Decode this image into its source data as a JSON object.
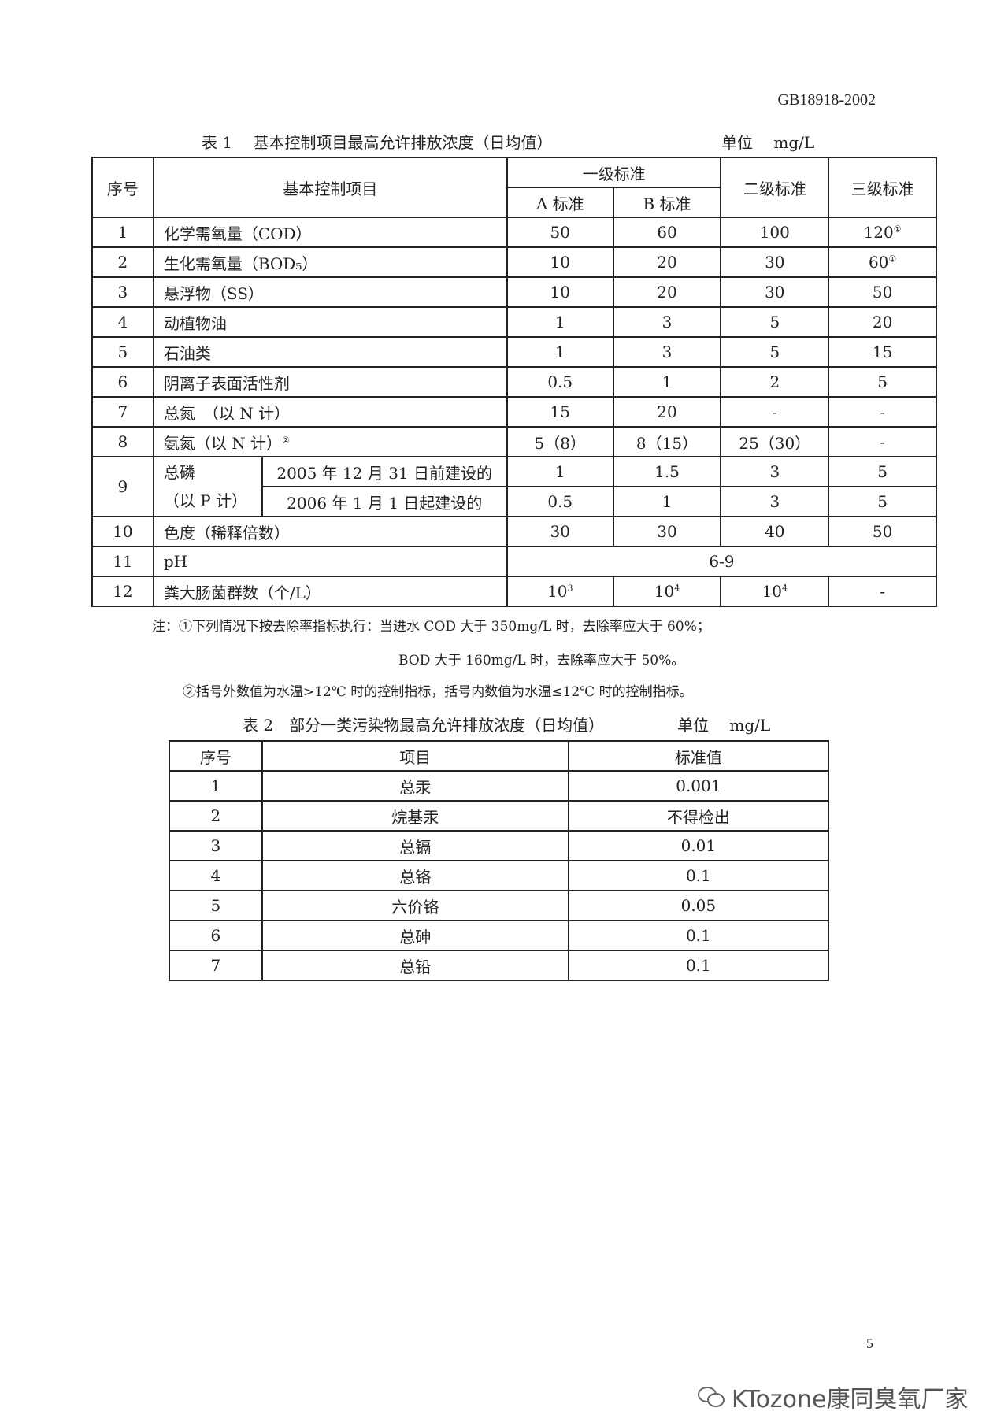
{
  "standard_code": "GB18918-2002",
  "table1": {
    "caption": "表 1　 基本控制项目最高允许排放浓度（日均值）",
    "unit": "单位　 mg/L",
    "headers": {
      "no": "序号",
      "item": "基本控制项目",
      "grade1": "一级标准",
      "a": "A 标准",
      "b": "B 标准",
      "grade2": "二级标准",
      "grade3": "三级标准"
    },
    "rows": [
      {
        "no": "1",
        "item": "化学需氧量（COD）",
        "a": "50",
        "b": "60",
        "g2": "100",
        "g3": "120",
        "g3_note": "①"
      },
      {
        "no": "2",
        "item": "生化需氧量（BOD₅）",
        "a": "10",
        "b": "20",
        "g2": "30",
        "g3": "60",
        "g3_note": "①"
      },
      {
        "no": "3",
        "item": "悬浮物（SS）",
        "a": "10",
        "b": "20",
        "g2": "30",
        "g3": "50"
      },
      {
        "no": "4",
        "item": "动植物油",
        "a": "1",
        "b": "3",
        "g2": "5",
        "g3": "20"
      },
      {
        "no": "5",
        "item": "石油类",
        "a": "1",
        "b": "3",
        "g2": "5",
        "g3": "15"
      },
      {
        "no": "6",
        "item": "阴离子表面活性剂",
        "a": "0.5",
        "b": "1",
        "g2": "2",
        "g3": "5"
      },
      {
        "no": "7",
        "item": "总氮　（以 N 计）",
        "a": "15",
        "b": "20",
        "g2": "-",
        "g3": "-"
      },
      {
        "no": "8",
        "item": "氨氮（以 N 计）",
        "item_note": "②",
        "a": "5（8）",
        "b": "8（15）",
        "g2": "25（30）",
        "g3": "-"
      }
    ],
    "row9": {
      "no": "9",
      "item": "总磷",
      "item2": "（以 P 计）",
      "sub": [
        {
          "label": "2005 年 12 月 31 日前建设的",
          "a": "1",
          "b": "1.5",
          "g2": "3",
          "g3": "5"
        },
        {
          "label": "2006 年 1 月 1 日起建设的",
          "a": "0.5",
          "b": "1",
          "g2": "3",
          "g3": "5"
        }
      ]
    },
    "row10": {
      "no": "10",
      "item": "色度（稀释倍数）",
      "a": "30",
      "b": "30",
      "g2": "40",
      "g3": "50"
    },
    "row11": {
      "no": "11",
      "item": "pH",
      "value": "6-9"
    },
    "row12": {
      "no": "12",
      "item": "粪大肠菌群数（个/L）",
      "base": "10",
      "a_exp": "3",
      "b_exp": "4",
      "g2_exp": "4",
      "g3": "-"
    }
  },
  "notes": [
    "注：①下列情况下按去除率指标执行：当进水 COD 大于 350mg/L 时，去除率应大于 60%；",
    "BOD 大于 160mg/L 时，去除率应大于 50%。",
    "②括号外数值为水温>12℃ 时的控制指标，括号内数值为水温≤12℃ 时的控制指标。"
  ],
  "table2": {
    "caption": "表 2　部分一类污染物最高允许排放浓度（日均值）",
    "unit": "单位　 mg/L",
    "headers": [
      "序号",
      "项目",
      "标准值"
    ],
    "rows": [
      [
        "1",
        "总汞",
        "0.001"
      ],
      [
        "2",
        "烷基汞",
        "不得检出"
      ],
      [
        "3",
        "总镉",
        "0.01"
      ],
      [
        "4",
        "总铬",
        "0.1"
      ],
      [
        "5",
        "六价铬",
        "0.05"
      ],
      [
        "6",
        "总砷",
        "0.1"
      ],
      [
        "7",
        "总铅",
        "0.1"
      ]
    ]
  },
  "page_number": "5",
  "watermark": "KTozone康同臭氧厂家"
}
